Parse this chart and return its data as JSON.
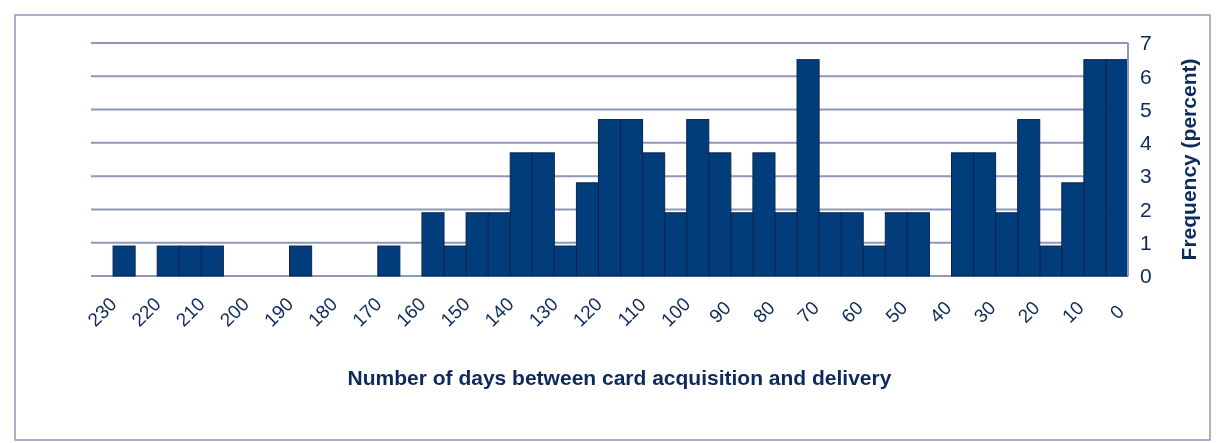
{
  "chart_data": {
    "type": "histogram",
    "xlabel": "Number of days between card acquisition and delivery",
    "ylabel": "Frequency (percent)",
    "color": "#023d7b",
    "bins": [
      -2.5,
      2.5,
      7.5,
      12.5,
      17.5,
      22.5,
      27.5,
      32.5,
      37.5,
      42.5,
      47.5,
      52.5,
      57.5,
      62.5,
      67.5,
      72.5,
      77.5,
      82.5,
      87.5,
      92.5,
      97.5,
      102.5,
      107.5,
      112.5,
      117.5,
      122.5,
      127.5,
      132.5,
      137.5,
      142.5,
      147.5,
      152.5,
      157.5,
      162.5,
      167.5,
      172.5,
      177.5,
      182.5,
      187.5,
      192.5,
      197.5,
      202.5,
      207.5,
      212.5,
      217.5,
      222.5,
      227.5,
      232.5
    ],
    "values": [
      6.5,
      6.5,
      2.8,
      0.9,
      4.7,
      1.9,
      3.7,
      3.7,
      0,
      1.9,
      1.9,
      0.9,
      1.9,
      1.9,
      6.5,
      1.9,
      3.7,
      1.9,
      3.7,
      4.7,
      1.9,
      3.7,
      4.7,
      4.7,
      2.8,
      0.9,
      3.7,
      3.7,
      1.9,
      1.9,
      0.9,
      1.9,
      0,
      0.9,
      0,
      0,
      0,
      0.9,
      0,
      0,
      0,
      0.9,
      0.9,
      0.9,
      0,
      0.9,
      0
    ],
    "xlim": [
      232.5,
      -2.5
    ],
    "xticks": [
      230,
      220,
      210,
      200,
      190,
      180,
      170,
      160,
      150,
      140,
      130,
      120,
      110,
      100,
      90,
      80,
      70,
      60,
      50,
      40,
      30,
      20,
      10,
      0
    ],
    "ylim": [
      0,
      7
    ],
    "yticks": [
      0,
      1,
      2,
      3,
      4,
      5,
      6,
      7
    ],
    "grid": "y"
  }
}
